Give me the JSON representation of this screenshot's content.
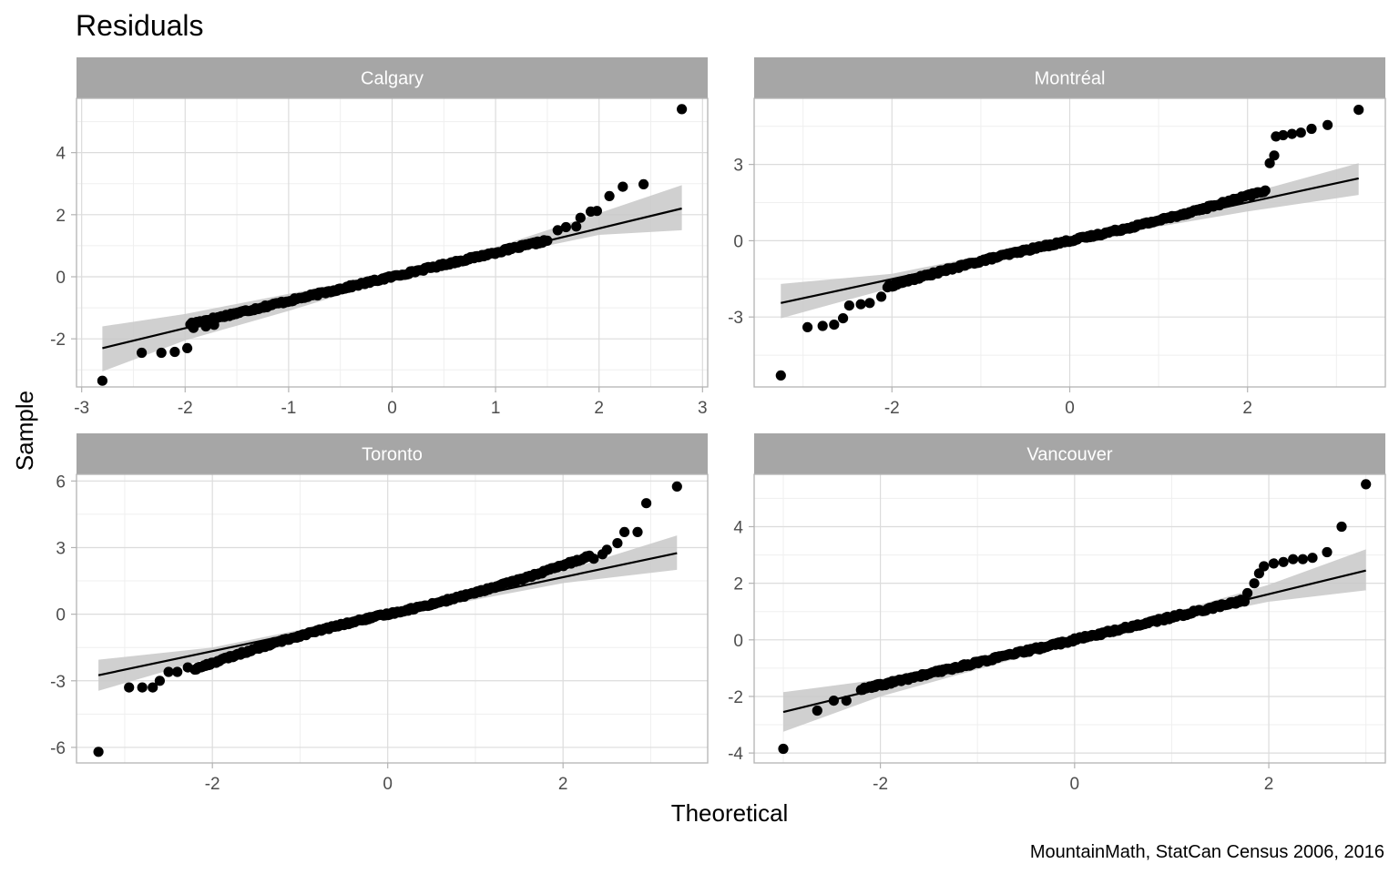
{
  "chart_data": {
    "type": "scatter",
    "title": "Residuals",
    "xlabel": "Theoretical",
    "ylabel": "Sample",
    "caption": "MountainMath, StatCan Census 2006, 2016",
    "grid": true,
    "legend": "none",
    "colors": {
      "strip": "#a6a6a6",
      "strip_text": "#ffffff",
      "grid_major": "#dcdcdc",
      "grid_minor": "#efefef",
      "panel_border": "#b3b3b3",
      "points": "#000000",
      "line": "#000000",
      "ribbon": "#c8c8c8",
      "tick_text": "#4d4d4d"
    },
    "panels": [
      {
        "name": "Calgary",
        "xlim": [
          -3.05,
          3.05
        ],
        "ylim": [
          -3.55,
          5.75
        ],
        "x_ticks": [
          -3,
          -2,
          -1,
          0,
          1,
          2,
          3
        ],
        "x_tick_labels": [
          "-3",
          "-2",
          "-1",
          "0",
          "1",
          "2",
          "3"
        ],
        "y_ticks": [
          -2,
          0,
          2,
          4
        ],
        "y_tick_labels": [
          "-2",
          "0",
          "2",
          "4"
        ],
        "line": {
          "x": [
            -2.8,
            2.8
          ],
          "y": [
            -2.3,
            2.2
          ]
        },
        "band": {
          "x": [
            -2.8,
            -2.0,
            -1.0,
            0.0,
            1.0,
            2.0,
            2.8
          ],
          "upper": [
            -1.6,
            -1.2,
            -0.55,
            0.08,
            0.95,
            2.05,
            2.95
          ],
          "lower": [
            -3.05,
            -2.05,
            -1.1,
            -0.08,
            0.65,
            1.35,
            1.5
          ]
        },
        "points": {
          "body": {
            "x_from": -1.95,
            "x_to": 1.5,
            "n": 220,
            "slope": 0.78,
            "intercept": 0.0,
            "bend": 0.0,
            "jitter": 0.04
          },
          "extra": [
            [
              -2.8,
              -3.35
            ],
            [
              -2.42,
              -2.45
            ],
            [
              -2.23,
              -2.45
            ],
            [
              -2.1,
              -2.42
            ],
            [
              -1.98,
              -2.3
            ],
            [
              -1.92,
              -1.65
            ],
            [
              -1.8,
              -1.6
            ],
            [
              -1.72,
              -1.55
            ],
            [
              1.6,
              1.5
            ],
            [
              1.68,
              1.6
            ],
            [
              1.78,
              1.62
            ],
            [
              1.82,
              1.9
            ],
            [
              1.92,
              2.1
            ],
            [
              1.98,
              2.12
            ],
            [
              2.1,
              2.6
            ],
            [
              2.23,
              2.9
            ],
            [
              2.43,
              2.98
            ],
            [
              2.8,
              5.4
            ]
          ]
        }
      },
      {
        "name": "Montréal",
        "xlim": [
          -3.55,
          3.55
        ],
        "ylim": [
          -5.75,
          5.6
        ],
        "x_ticks": [
          -2,
          0,
          2
        ],
        "x_tick_labels": [
          "-2",
          "0",
          "2"
        ],
        "y_ticks": [
          -3,
          0,
          3
        ],
        "y_tick_labels": [
          "-3",
          "0",
          "3"
        ],
        "line": {
          "x": [
            -3.25,
            3.25
          ],
          "y": [
            -2.45,
            2.45
          ]
        },
        "band": {
          "x": [
            -3.25,
            -2.0,
            -1.0,
            0.0,
            1.0,
            2.0,
            3.25
          ],
          "upper": [
            -1.7,
            -1.3,
            -0.6,
            0.1,
            0.95,
            1.85,
            3.05
          ],
          "lower": [
            -3.05,
            -1.85,
            -0.95,
            -0.1,
            0.55,
            1.15,
            1.8
          ]
        },
        "points": {
          "body": {
            "x_from": -2.05,
            "x_to": 2.2,
            "n": 240,
            "slope": 0.72,
            "intercept": 0.0,
            "bend": 0.08,
            "jitter": 0.05
          },
          "extra": [
            [
              -3.25,
              -5.3
            ],
            [
              -2.95,
              -3.4
            ],
            [
              -2.78,
              -3.35
            ],
            [
              -2.65,
              -3.3
            ],
            [
              -2.55,
              -3.05
            ],
            [
              -2.48,
              -2.55
            ],
            [
              -2.35,
              -2.5
            ],
            [
              -2.25,
              -2.45
            ],
            [
              -2.12,
              -2.2
            ],
            [
              2.25,
              3.05
            ],
            [
              2.3,
              3.35
            ],
            [
              2.32,
              4.1
            ],
            [
              2.4,
              4.15
            ],
            [
              2.5,
              4.2
            ],
            [
              2.6,
              4.25
            ],
            [
              2.72,
              4.4
            ],
            [
              2.9,
              4.55
            ],
            [
              3.25,
              5.15
            ]
          ]
        }
      },
      {
        "name": "Toronto",
        "xlim": [
          -3.55,
          3.65
        ],
        "ylim": [
          -6.7,
          6.3
        ],
        "x_ticks": [
          -2,
          0,
          2
        ],
        "x_tick_labels": [
          "-2",
          "0",
          "2"
        ],
        "y_ticks": [
          -6,
          -3,
          0,
          3,
          6
        ],
        "y_tick_labels": [
          "-6",
          "-3",
          "0",
          "3",
          "6"
        ],
        "line": {
          "x": [
            -3.3,
            3.3
          ],
          "y": [
            -2.75,
            2.75
          ]
        },
        "band": {
          "x": [
            -3.3,
            -2.0,
            -1.0,
            0.0,
            1.0,
            2.0,
            3.3
          ],
          "upper": [
            -2.05,
            -1.5,
            -0.7,
            0.1,
            0.95,
            1.95,
            3.55
          ],
          "lower": [
            -3.45,
            -1.95,
            -1.0,
            -0.1,
            0.65,
            1.4,
            2.0
          ]
        },
        "points": {
          "body": {
            "x_from": -2.2,
            "x_to": 2.3,
            "n": 260,
            "slope": 0.84,
            "intercept": 0.0,
            "bend": 0.13,
            "jitter": 0.05
          },
          "extra": [
            [
              -3.3,
              -6.2
            ],
            [
              -2.95,
              -3.3
            ],
            [
              -2.8,
              -3.3
            ],
            [
              -2.68,
              -3.3
            ],
            [
              -2.6,
              -3.0
            ],
            [
              -2.5,
              -2.6
            ],
            [
              -2.4,
              -2.6
            ],
            [
              -2.28,
              -2.4
            ],
            [
              2.35,
              2.5
            ],
            [
              2.45,
              2.7
            ],
            [
              2.5,
              2.9
            ],
            [
              2.62,
              3.2
            ],
            [
              2.7,
              3.7
            ],
            [
              2.85,
              3.7
            ],
            [
              2.95,
              5.0
            ],
            [
              3.3,
              5.75
            ]
          ]
        }
      },
      {
        "name": "Vancouver",
        "xlim": [
          -3.3,
          3.2
        ],
        "ylim": [
          -4.35,
          5.85
        ],
        "x_ticks": [
          -2,
          0,
          2
        ],
        "x_tick_labels": [
          "-2",
          "0",
          "2"
        ],
        "y_ticks": [
          -4,
          -2,
          0,
          2,
          4
        ],
        "y_tick_labels": [
          "-4",
          "-2",
          "0",
          "2",
          "4"
        ],
        "line": {
          "x": [
            -3.0,
            3.0
          ],
          "y": [
            -2.55,
            2.45
          ]
        },
        "band": {
          "x": [
            -3.0,
            -2.0,
            -1.0,
            0.0,
            1.0,
            2.0,
            3.0
          ],
          "upper": [
            -1.85,
            -1.4,
            -0.65,
            0.08,
            0.95,
            1.95,
            3.2
          ],
          "lower": [
            -3.25,
            -2.0,
            -1.05,
            -0.08,
            0.65,
            1.35,
            1.75
          ]
        },
        "points": {
          "body": {
            "x_from": -2.2,
            "x_to": 1.75,
            "n": 220,
            "slope": 0.8,
            "intercept": 0.0,
            "bend": 0.0,
            "jitter": 0.05
          },
          "extra": [
            [
              -3.0,
              -3.85
            ],
            [
              -2.65,
              -2.5
            ],
            [
              -2.48,
              -2.15
            ],
            [
              -2.35,
              -2.15
            ],
            [
              1.78,
              1.65
            ],
            [
              1.85,
              2.0
            ],
            [
              1.9,
              2.35
            ],
            [
              1.95,
              2.6
            ],
            [
              2.05,
              2.7
            ],
            [
              2.15,
              2.75
            ],
            [
              2.25,
              2.85
            ],
            [
              2.35,
              2.85
            ],
            [
              2.45,
              2.9
            ],
            [
              2.6,
              3.1
            ],
            [
              2.75,
              4.0
            ],
            [
              3.0,
              5.5
            ]
          ]
        }
      }
    ]
  }
}
